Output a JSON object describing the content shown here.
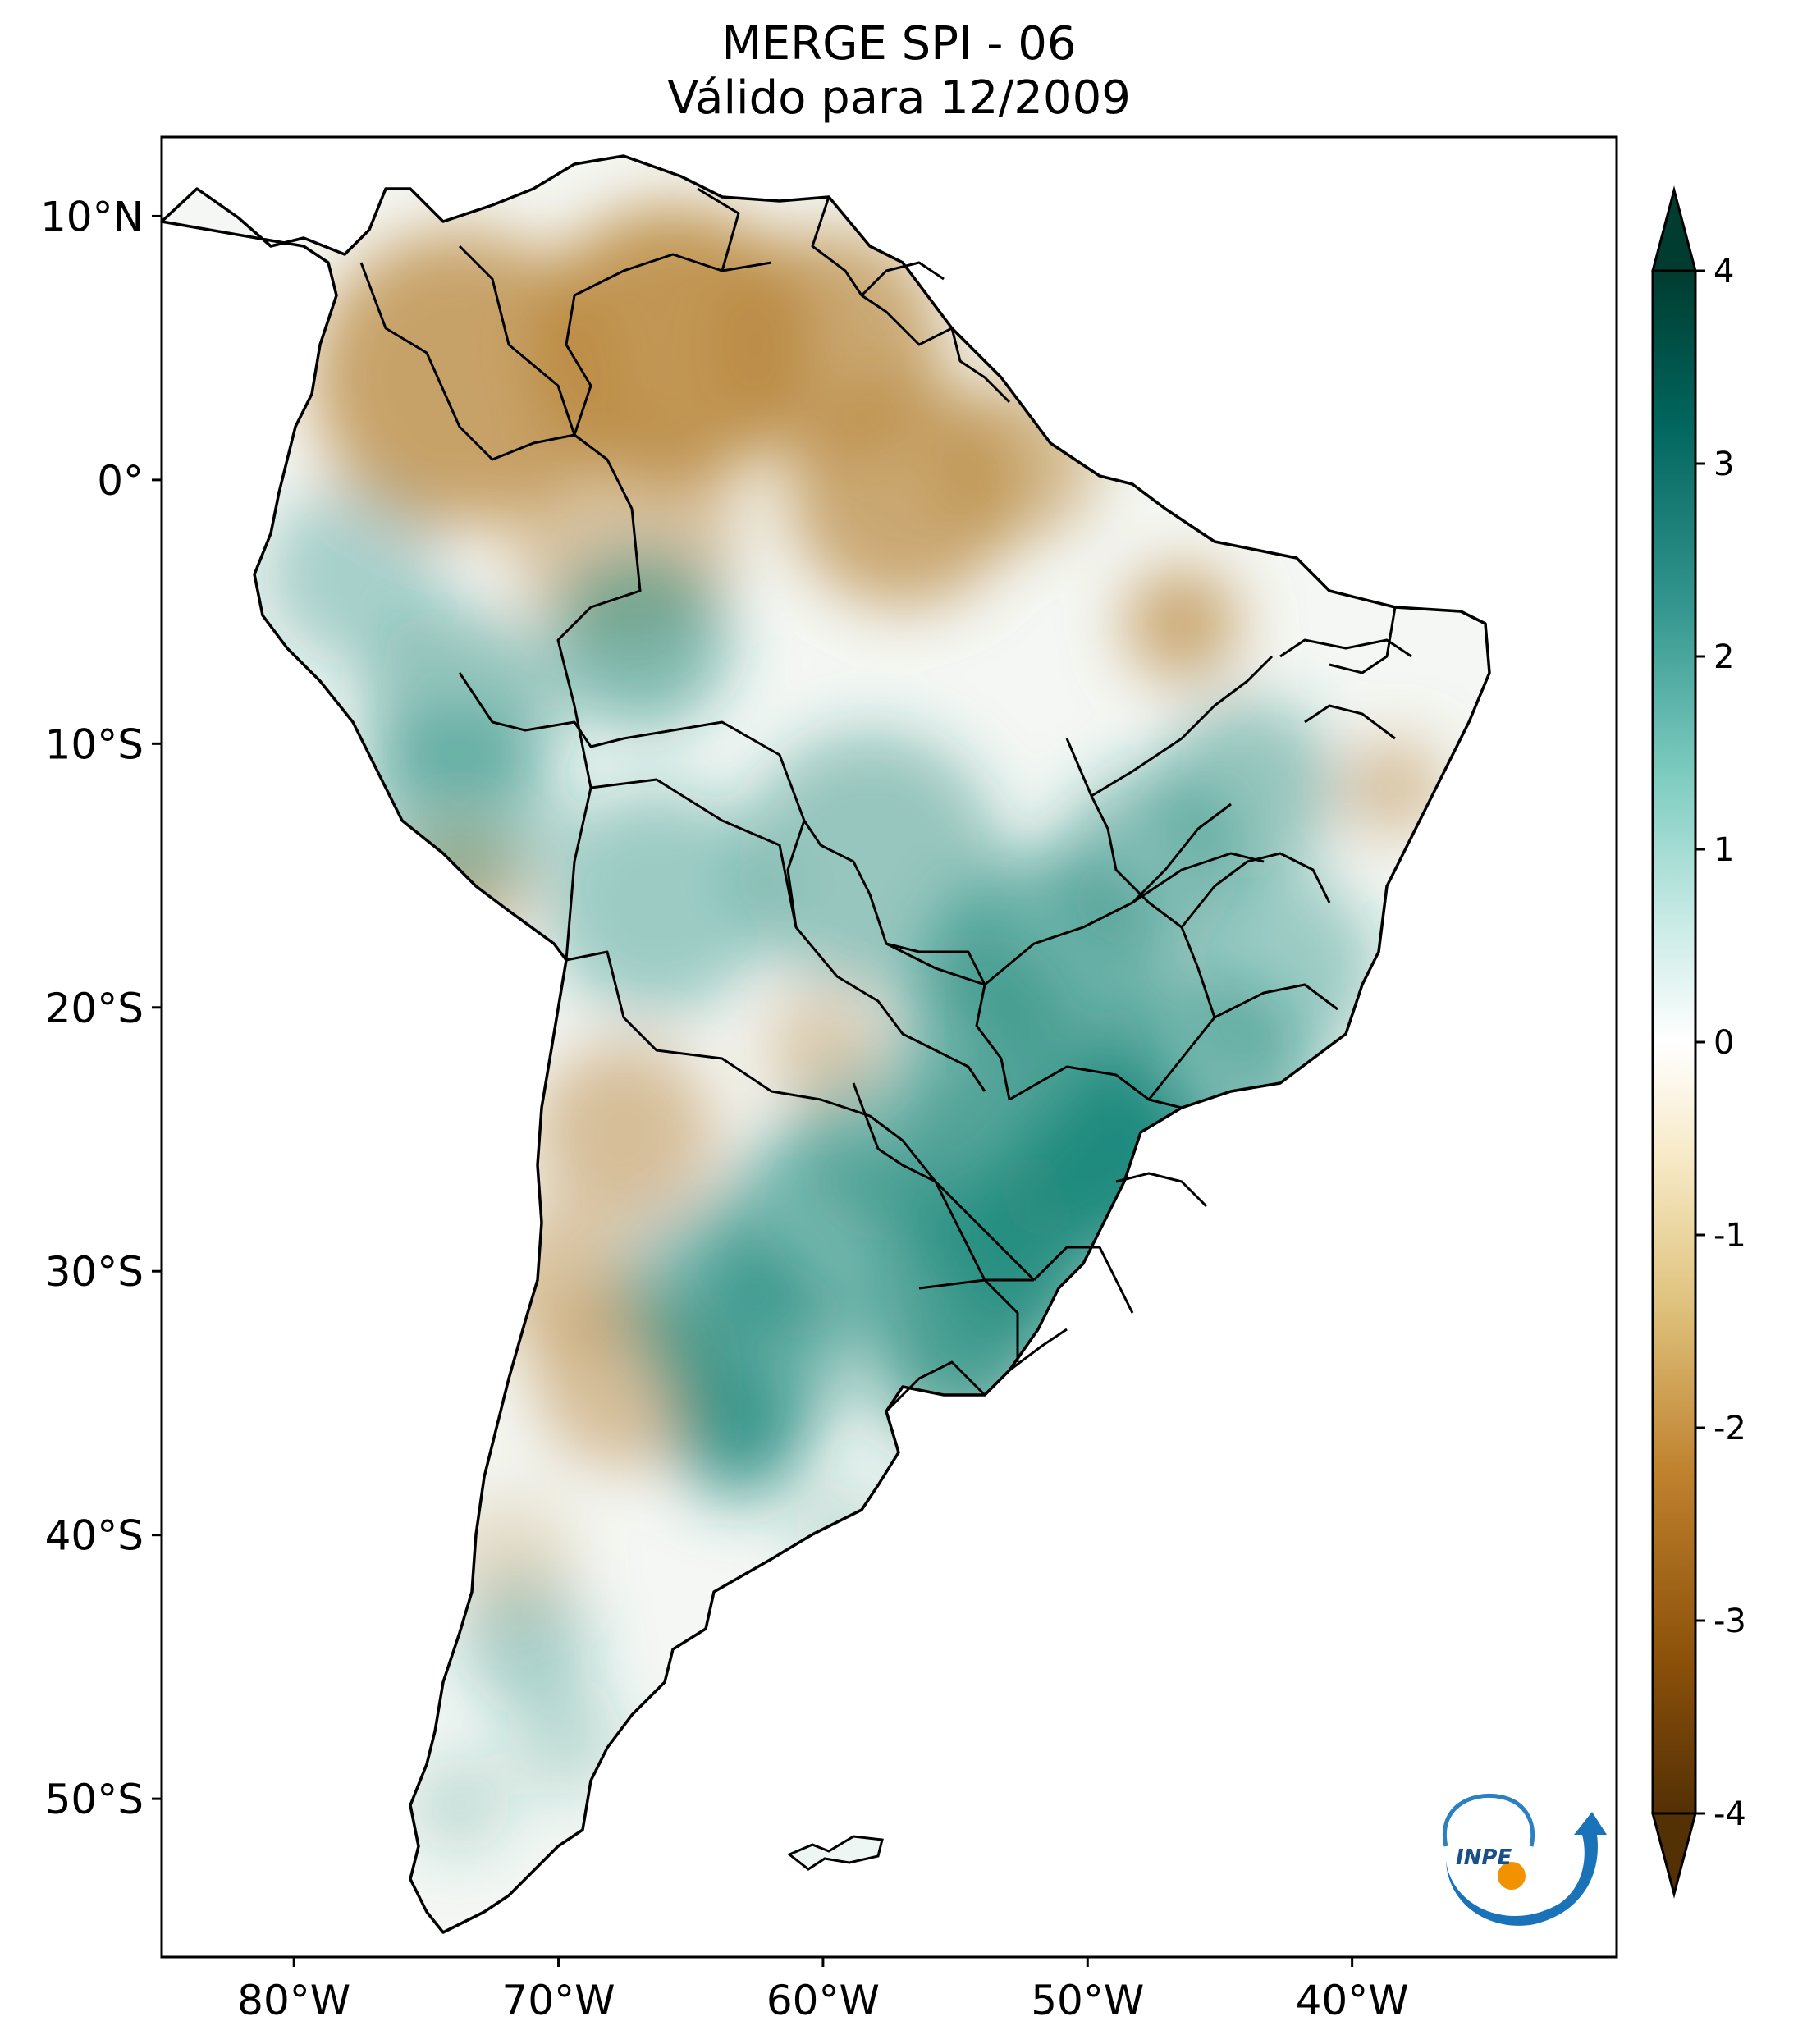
{
  "title": {
    "line1": "MERGE   SPI - 06",
    "line2": "Válido para 12/2009"
  },
  "map": {
    "extent": {
      "lon": [
        -85,
        -30
      ],
      "lat": [
        -56,
        13
      ]
    },
    "lon_ticks": [
      {
        "value": -80,
        "label": "80°W"
      },
      {
        "value": -70,
        "label": "70°W"
      },
      {
        "value": -60,
        "label": "60°W"
      },
      {
        "value": -50,
        "label": "50°W"
      },
      {
        "value": -40,
        "label": "40°W"
      }
    ],
    "lat_ticks": [
      {
        "value": 10,
        "label": "10°N"
      },
      {
        "value": 0,
        "label": "0°"
      },
      {
        "value": -10,
        "label": "10°S"
      },
      {
        "value": -20,
        "label": "20°S"
      },
      {
        "value": -30,
        "label": "30°S"
      },
      {
        "value": -40,
        "label": "40°S"
      },
      {
        "value": -50,
        "label": "50°S"
      }
    ]
  },
  "colorbar": {
    "range": [
      -4,
      4
    ],
    "ticks": [
      {
        "value": 4,
        "label": "4"
      },
      {
        "value": 3,
        "label": "3"
      },
      {
        "value": 2,
        "label": "2"
      },
      {
        "value": 1,
        "label": "1"
      },
      {
        "value": 0,
        "label": "0"
      },
      {
        "value": -1,
        "label": "-1"
      },
      {
        "value": -2,
        "label": "-2"
      },
      {
        "value": -3,
        "label": "-3"
      },
      {
        "value": -4,
        "label": "-4"
      }
    ],
    "colors": [
      "#543005",
      "#8c510a",
      "#bf812d",
      "#dfc27d",
      "#f6e8c3",
      "#ffffff",
      "#c7eae5",
      "#80cdc1",
      "#35978f",
      "#01665e",
      "#003c30"
    ]
  },
  "logo": {
    "text": "INPE"
  },
  "colors": {
    "dry": "#b8863b",
    "wet": "#1f8a7d",
    "border": "#000000"
  }
}
